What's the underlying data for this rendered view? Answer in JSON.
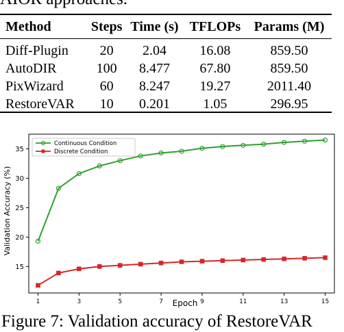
{
  "header_fragment": "AIOR approaches.",
  "table": {
    "columns": [
      "Method",
      "Steps",
      "Time (s)",
      "TFLOPs",
      "Params (M)"
    ],
    "rows": [
      [
        "Diff-Plugin",
        "20",
        "2.04",
        "16.08",
        "859.50"
      ],
      [
        "AutoDIR",
        "100",
        "8.477",
        "67.80",
        "859.50"
      ],
      [
        "PixWizard",
        "60",
        "8.247",
        "19.27",
        "2011.40"
      ],
      [
        "RestoreVAR",
        "10",
        "0.201",
        "1.05",
        "296.95"
      ]
    ]
  },
  "chart_data": {
    "type": "line",
    "xlabel": "Epoch",
    "ylabel": "Validation Accuracy (%)",
    "x": [
      1,
      2,
      3,
      4,
      5,
      6,
      7,
      8,
      9,
      10,
      11,
      12,
      13,
      14,
      15
    ],
    "x_ticks": [
      1,
      3,
      5,
      7,
      9,
      11,
      13,
      15
    ],
    "y_ticks": [
      15,
      20,
      25,
      30,
      35
    ],
    "xlim": [
      0.55,
      15.45
    ],
    "ylim": [
      10.5,
      37.5
    ],
    "grid": false,
    "legend_position": "top-left",
    "series": [
      {
        "name": "Continuous Condition",
        "color": "#2ca02c",
        "marker": "circle",
        "values": [
          19.3,
          28.3,
          30.8,
          32.1,
          33.0,
          33.8,
          34.3,
          34.6,
          35.1,
          35.4,
          35.6,
          35.8,
          36.1,
          36.3,
          36.5
        ]
      },
      {
        "name": "Discrete Condition",
        "color": "#d62728",
        "marker": "square",
        "values": [
          11.8,
          13.9,
          14.6,
          15.0,
          15.2,
          15.4,
          15.6,
          15.8,
          15.9,
          16.0,
          16.1,
          16.2,
          16.3,
          16.4,
          16.5
        ]
      }
    ]
  },
  "caption_fragment": "Figure 7: Validation accuracy of RestoreVAR"
}
